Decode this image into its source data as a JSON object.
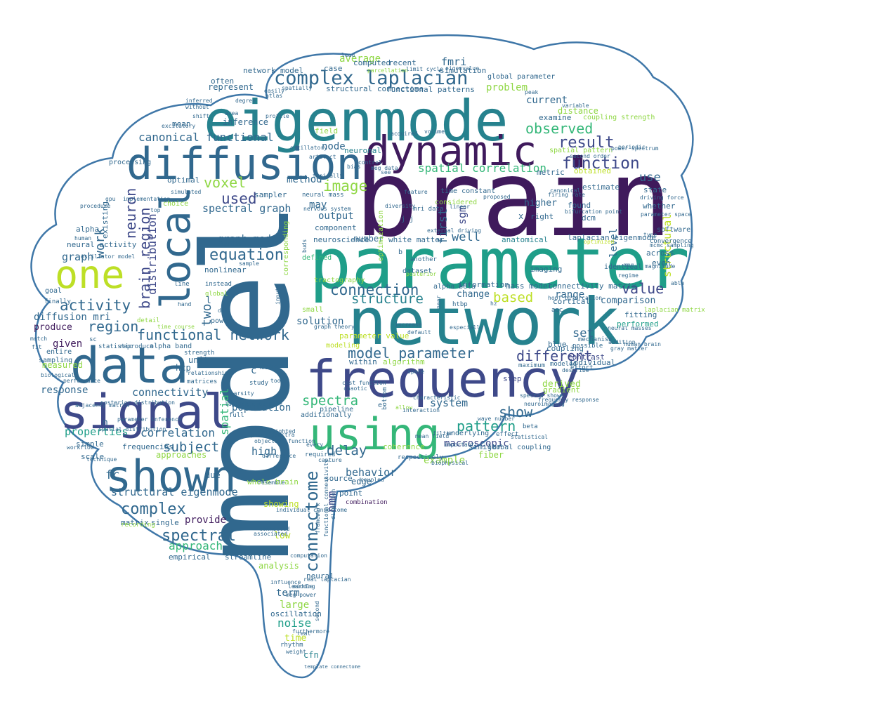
{
  "palette": {
    "outline": "#3f77a8",
    "purple": "#3f1a5c",
    "indigo": "#3e4989",
    "blue": "#31688e",
    "teal": "#26828e",
    "cyan": "#1f9e89",
    "green": "#35b779",
    "lime": "#8fd744",
    "yellow": "#bddf26"
  },
  "words": [
    "brain",
    "model",
    "parameter",
    "network",
    "eigenmode",
    "frequency",
    "using",
    "data",
    "signal",
    "shown",
    "diffusion",
    "dynamic",
    "local",
    "one",
    "complex laplacian",
    "connectome",
    "observed",
    "result",
    "function",
    "spatial correlation",
    "image",
    "voxel",
    "used",
    "equation",
    "graph model",
    "connection",
    "structure",
    "value",
    "functional network",
    "model parameter",
    "different",
    "activity",
    "region",
    "spectral",
    "complex",
    "spectra",
    "pattern",
    "delay",
    "macroscopic",
    "correlation",
    "subject",
    "connectivity",
    "behavior",
    "population",
    "high",
    "approach",
    "provide",
    "structural eigenmode",
    "diffusion mri",
    "produce",
    "given",
    "graph",
    "work",
    "neuron",
    "brain region",
    "fc",
    "properties",
    "response",
    "noise",
    "time",
    "large",
    "term",
    "cfn",
    "canonical functional",
    "mean",
    "node",
    "average",
    "fmri",
    "problem",
    "current",
    "well",
    "first",
    "sgm",
    "nmm",
    "two",
    "distribution",
    "level",
    "use",
    "set",
    "range",
    "based",
    "comparison",
    "solution",
    "output",
    "show",
    "system",
    "spatial",
    "example",
    "analysis",
    "oscillation",
    "empirical",
    "streamline",
    "whole brain",
    "matrix",
    "single",
    "simple",
    "scale",
    "alpha",
    "imaging",
    "anatomical",
    "laplacian eigenmode",
    "structural",
    "fitting",
    "performed",
    "sampler",
    "method",
    "may",
    "component",
    "neuroscience",
    "number",
    "white matter",
    "information",
    "change",
    "mass model",
    "connectivity matrix",
    "across",
    "even",
    "whether",
    "dcm",
    "found",
    "estimate",
    "higher",
    "right",
    "state",
    "driving force",
    "spectral graph",
    "nonlinear",
    "frequencies",
    "approaches",
    "due",
    "fiber",
    "similar",
    "coherence",
    "point",
    "edge",
    "source",
    "showing",
    "low",
    "connected",
    "neural",
    "computation",
    "cortical",
    "individual",
    "contrast",
    "coupling",
    "blue",
    "step",
    "gradient",
    "derived",
    "beta",
    "statistical",
    "effect",
    "global coupling",
    "wave number",
    "simulation",
    "peak",
    "distance",
    "examine",
    "coupling strength",
    "spatial pattern",
    "obtained",
    "metric",
    "case",
    "computed",
    "recent",
    "parcellation",
    "represent",
    "often",
    "network model",
    "structural connectome",
    "functional patterns",
    "global parameter",
    "eigenvalue",
    "inference",
    "oscillatory",
    "field",
    "neuronal",
    "see",
    "volume",
    "optimal",
    "choice",
    "implementation",
    "top",
    "processing",
    "existing",
    "human",
    "neural activity",
    "goal",
    "finally",
    "match",
    "fit",
    "sampling",
    "measured",
    "entire",
    "biological",
    "performance",
    "recording",
    "unit",
    "strength",
    "relationship",
    "alpha band",
    "power",
    "detail",
    "time course",
    "matrices",
    "make",
    "study",
    "tool",
    "full",
    "additionally",
    "pipeline",
    "underlying",
    "respectively",
    "capture",
    "required",
    "combination",
    "direction",
    "functional connectivity",
    "framework",
    "within",
    "algorithm",
    "modeling",
    "tractography",
    "small",
    "parameter value",
    "graph theory",
    "default",
    "especially",
    "htbp",
    "alpha beta",
    "maximum",
    "possible",
    "mechanism",
    "effort",
    "modeled",
    "laplacian matrix",
    "sc",
    "statistic",
    "reproduce",
    "characteristic",
    "allow",
    "bottom",
    "mean field",
    "rhythm",
    "weight",
    "template connectome",
    "influence",
    "middle",
    "real",
    "random",
    "sample",
    "global",
    "instead",
    "dwi",
    "line",
    "hand",
    "input",
    "corresponding",
    "defined",
    "dataset",
    "another",
    "posterior",
    "time constant",
    "considered",
    "linear",
    "neural mass",
    "typically",
    "proposed",
    "firing rate",
    "canonical",
    "bifurcation point",
    "hz",
    "hopf bifurcation",
    "aec",
    "software",
    "convergence",
    "type",
    "able",
    "identical",
    "meg",
    "optimized",
    "gray matter",
    "addition",
    "neural masses",
    "regime",
    "magnitude",
    "parameter space",
    "mcmc sampling",
    "periodic",
    "power spectrum",
    "second order",
    "variable",
    "simulated",
    "inferred",
    "without",
    "degree",
    "spatially",
    "excitatory",
    "profile",
    "area",
    "shift",
    "artifact",
    "acquired",
    "atlas",
    "easily",
    "lead",
    "bias",
    "control",
    "meg data",
    "feature",
    "diversity",
    "limit cycle",
    "optimization",
    "nervous system",
    "buds",
    "near",
    "j j",
    "x",
    "b",
    "c",
    "l",
    "n",
    "hcp",
    "e",
    "mri data",
    "space",
    "spectra shown",
    "frequency response",
    "power spectra",
    "objective function",
    "spatial distribution",
    "adjacency matrix",
    "posterior distribution",
    "parameter inference",
    "technique",
    "procedure",
    "gpu",
    "workflow",
    "difference",
    "associated",
    "resemble",
    "individual connectome",
    "laplace eigenmode",
    "sparsity",
    "cost function",
    "chaotic",
    "increase",
    "external driving",
    "neuroimaging",
    "filter",
    "important",
    "biophysical",
    "interaction",
    "every",
    "real laplacian",
    "meg power",
    "furthermore",
    "learning",
    "second",
    "coupled",
    "weighted",
    "human brain",
    "oscillator model",
    "describe",
    "hcp",
    "activation"
  ]
}
